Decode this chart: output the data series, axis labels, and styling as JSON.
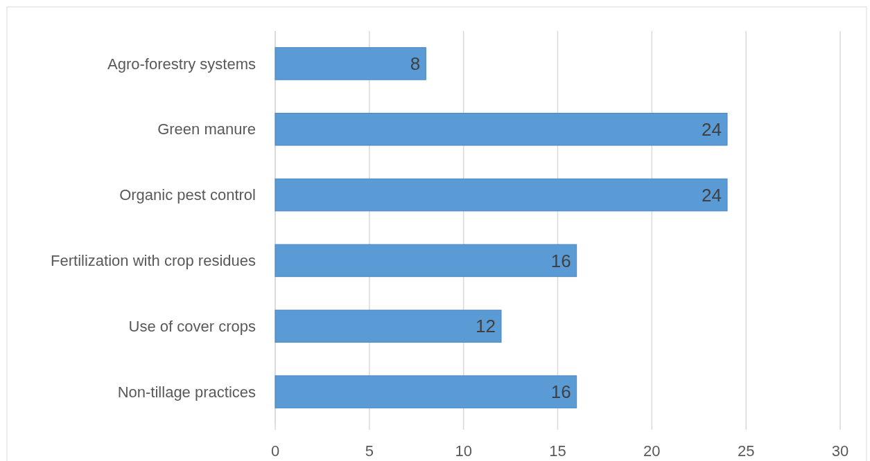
{
  "chart_data": {
    "type": "bar",
    "orientation": "horizontal",
    "categories": [
      "Agro-forestry systems",
      "Green manure",
      "Organic pest control",
      "Fertilization with crop residues",
      "Use of cover crops",
      "Non-tillage practices"
    ],
    "values": [
      8,
      24,
      24,
      16,
      12,
      16
    ],
    "color": "#5b9bd5",
    "xlim": [
      0,
      30
    ],
    "xticks": [
      0,
      5,
      10,
      15,
      20,
      25,
      30
    ],
    "grid": "x",
    "data_labels": true
  }
}
